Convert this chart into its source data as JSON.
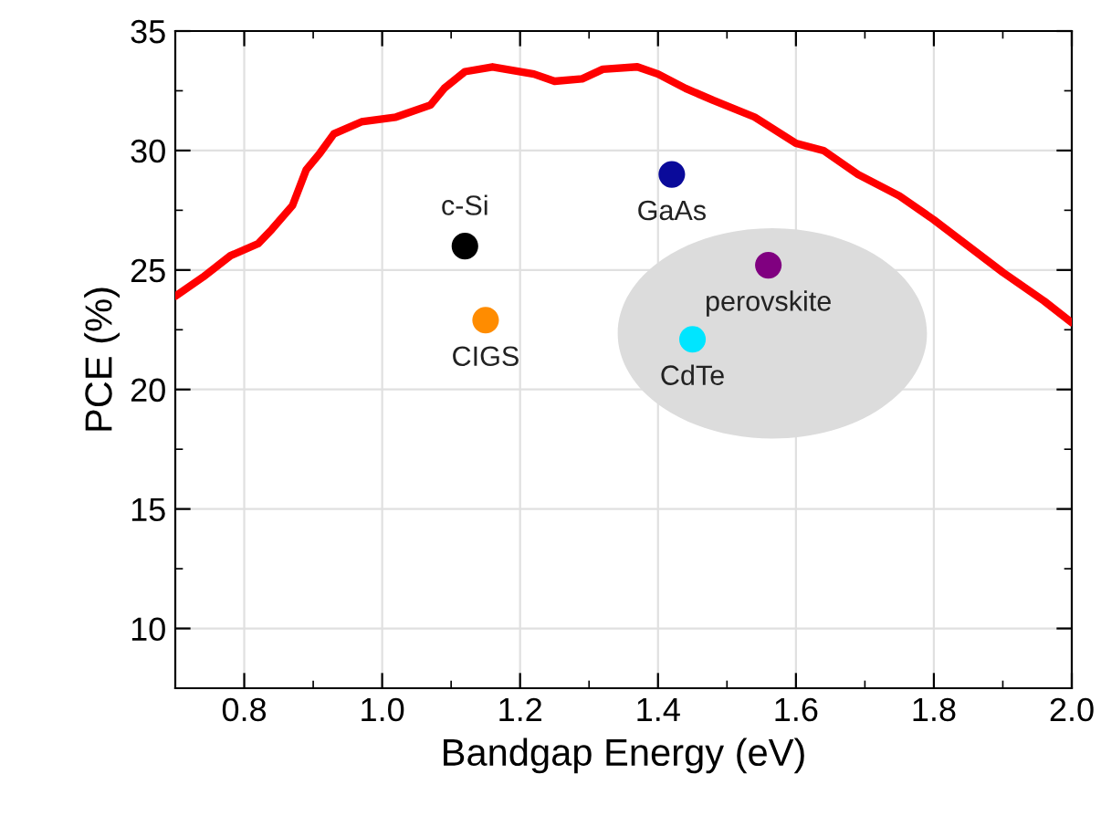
{
  "chart_data": {
    "type": "scatter",
    "xlabel": "Bandgap Energy (eV)",
    "ylabel": "PCE (%)",
    "xlim": [
      0.7,
      2.0
    ],
    "ylim": [
      7.5,
      35
    ],
    "xticks": [
      {
        "value": 0.8,
        "label": "0.8"
      },
      {
        "value": 1.0,
        "label": "1.0"
      },
      {
        "value": 1.2,
        "label": "1.2"
      },
      {
        "value": 1.4,
        "label": "1.4"
      },
      {
        "value": 1.6,
        "label": "1.6"
      },
      {
        "value": 1.8,
        "label": "1.8"
      },
      {
        "value": 2.0,
        "label": "2.0"
      }
    ],
    "yticks": [
      10,
      15,
      20,
      25,
      30,
      35
    ],
    "grid": true,
    "legend": false,
    "marker": "circle",
    "series": [
      {
        "type": "line",
        "marker": "none",
        "color": "#ff0000",
        "line_style": "solid",
        "x": [
          0.7,
          0.74,
          0.78,
          0.82,
          0.84,
          0.87,
          0.89,
          0.91,
          0.93,
          0.97,
          1.02,
          1.07,
          1.09,
          1.12,
          1.16,
          1.22,
          1.25,
          1.29,
          1.32,
          1.37,
          1.4,
          1.44,
          1.48,
          1.54,
          1.6,
          1.64,
          1.69,
          1.75,
          1.8,
          1.85,
          1.9,
          1.96,
          2.0
        ],
        "values": [
          23.9,
          24.7,
          25.6,
          26.1,
          26.7,
          27.7,
          29.2,
          29.9,
          30.7,
          31.2,
          31.4,
          31.9,
          32.6,
          33.3,
          33.5,
          33.2,
          32.9,
          33.0,
          33.4,
          33.5,
          33.2,
          32.6,
          32.1,
          31.4,
          30.3,
          30.0,
          29.0,
          28.1,
          27.1,
          26.0,
          24.9,
          23.7,
          22.8
        ]
      },
      {
        "name": "c-Si",
        "color": "#000000",
        "x": [
          1.12
        ],
        "values": [
          26.0
        ]
      },
      {
        "name": "CIGS",
        "color": "#ff8c00",
        "x": [
          1.15
        ],
        "values": [
          22.9
        ]
      },
      {
        "name": "GaAs",
        "color": "#0a0a9a",
        "x": [
          1.42
        ],
        "values": [
          29.0
        ]
      },
      {
        "name": "perovskite",
        "color": "#800080",
        "x": [
          1.56
        ],
        "values": [
          25.2
        ]
      },
      {
        "name": "CdTe",
        "color": "#00e5ff",
        "x": [
          1.45
        ],
        "values": [
          22.1
        ]
      }
    ]
  }
}
